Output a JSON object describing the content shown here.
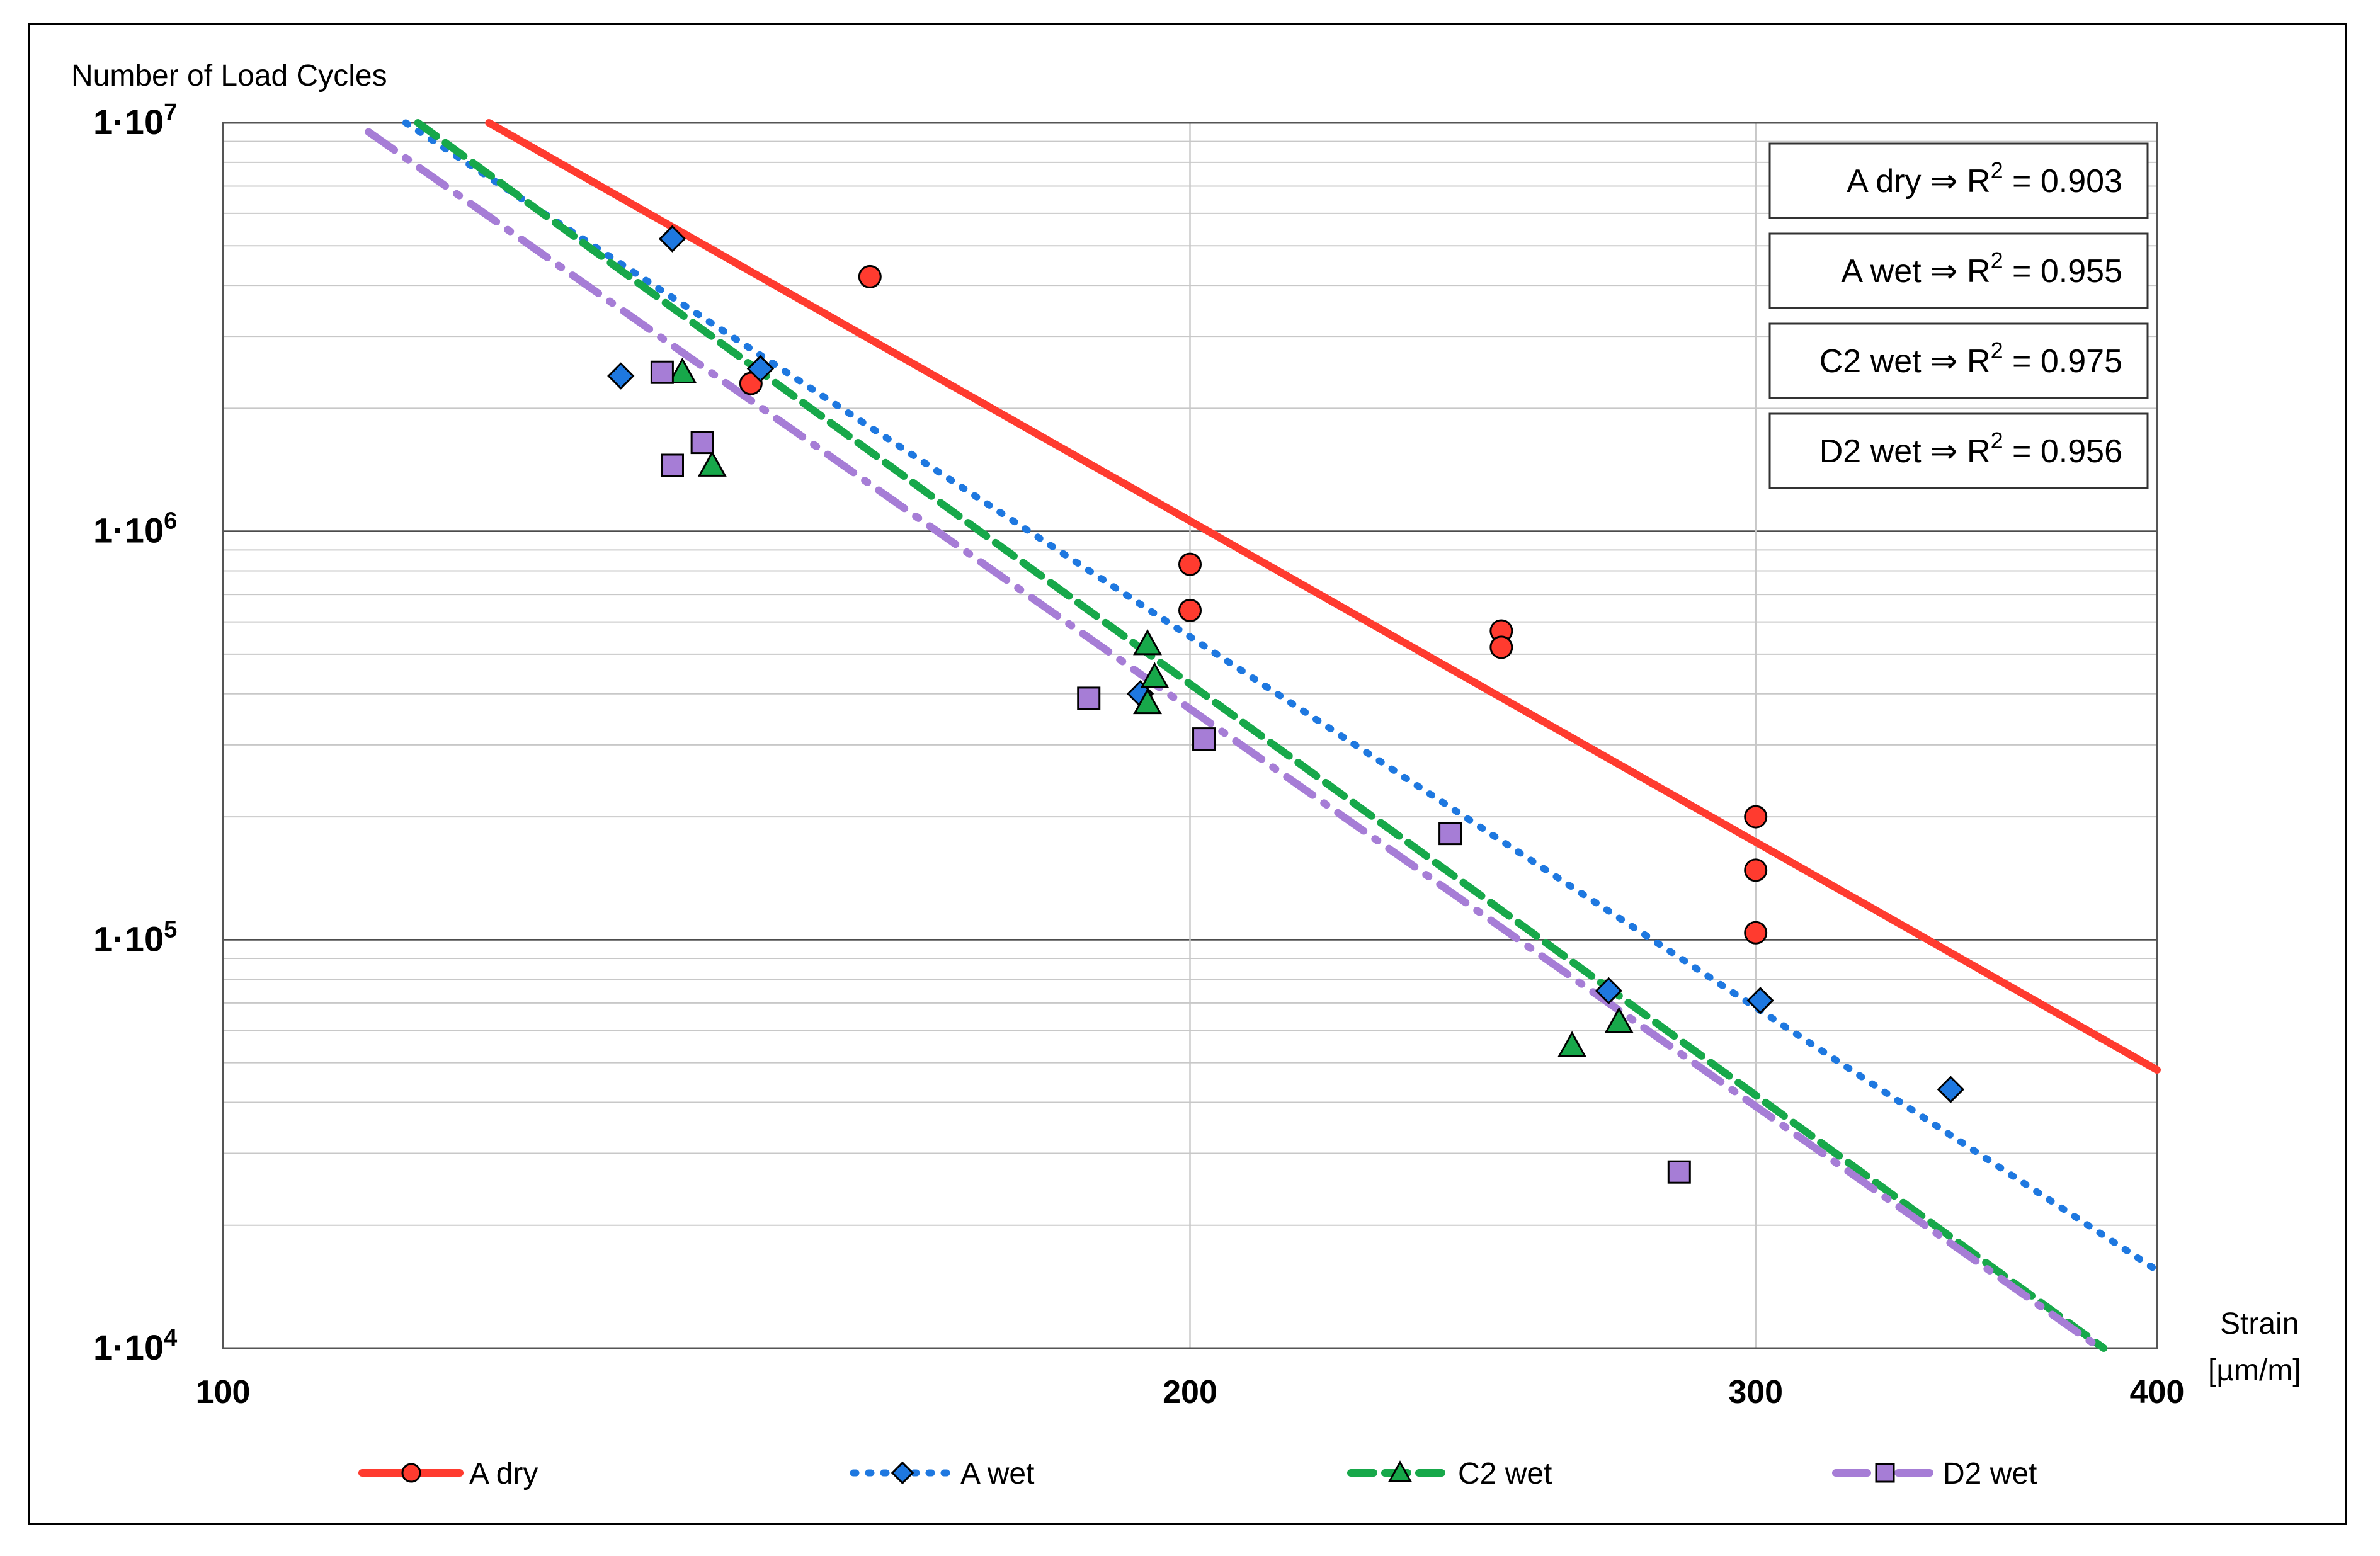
{
  "chart_data": {
    "type": "scatter",
    "xscale": "log",
    "yscale": "log",
    "xlim": [
      100,
      400
    ],
    "ylim": [
      10000,
      10000000
    ],
    "xticks": [
      100,
      200,
      300,
      400
    ],
    "yticks": [
      10000,
      100000,
      1000000,
      10000000
    ],
    "xtick_labels": [
      "100",
      "200",
      "300",
      "400"
    ],
    "ytick_labels": [
      {
        "base": "1·10",
        "exp": "4"
      },
      {
        "base": "1·10",
        "exp": "5"
      },
      {
        "base": "1·10",
        "exp": "6"
      },
      {
        "base": "1·10",
        "exp": "7"
      }
    ],
    "ylabel": "Number of Load Cycles",
    "xlabel_line1": "Strain",
    "xlabel_line2": "[µm/m]",
    "grid": "major vertical, major and minor horizontal",
    "legend_position": "bottom",
    "r2_boxes": [
      {
        "label": "A dry ⇒ R",
        "sup": "2",
        "value": " = 0.903"
      },
      {
        "label": "A wet ⇒ R",
        "sup": "2",
        "value": " = 0.955"
      },
      {
        "label": "C2 wet ⇒ R",
        "sup": "2",
        "value": " = 0.975"
      },
      {
        "label": "D2 wet ⇒ R",
        "sup": "2",
        "value": " = 0.956"
      }
    ],
    "series": [
      {
        "name": "A dry",
        "color": "#ff3b2f",
        "marker": "circle",
        "line": "solid",
        "trend": [
          [
            121,
            10000000
          ],
          [
            400,
            48000
          ]
        ],
        "points": [
          [
            159,
            4200000
          ],
          [
            146,
            2300000
          ],
          [
            200,
            830000
          ],
          [
            200,
            640000
          ],
          [
            250,
            570000
          ],
          [
            250,
            520000
          ],
          [
            300,
            200000
          ],
          [
            300,
            148000
          ],
          [
            300,
            104000
          ]
        ]
      },
      {
        "name": "A wet",
        "color": "#1e78e0",
        "marker": "diamond",
        "line": "dotted",
        "trend": [
          [
            114,
            10000000
          ],
          [
            400,
            15500
          ]
        ],
        "points": [
          [
            138,
            5200000
          ],
          [
            133,
            2400000
          ],
          [
            147,
            2500000
          ],
          [
            193,
            400000
          ],
          [
            301,
            71000
          ],
          [
            270,
            75000
          ],
          [
            345,
            43000
          ]
        ]
      },
      {
        "name": "C2 wet",
        "color": "#17a84a",
        "marker": "triangle",
        "line": "dashed",
        "trend": [
          [
            115,
            10000000
          ],
          [
            385,
            10000
          ]
        ],
        "points": [
          [
            139,
            2450000
          ],
          [
            142,
            1450000
          ],
          [
            194,
            530000
          ],
          [
            195,
            440000
          ],
          [
            194,
            380000
          ],
          [
            263,
            55000
          ],
          [
            272,
            63000
          ]
        ]
      },
      {
        "name": "D2 wet",
        "color": "#a67dd6",
        "marker": "square",
        "line": "dashdot",
        "trend": [
          [
            111,
            9500000
          ],
          [
            384,
            10000
          ]
        ],
        "points": [
          [
            137,
            2450000
          ],
          [
            138,
            1450000
          ],
          [
            141,
            1650000
          ],
          [
            186,
            390000
          ],
          [
            202,
            310000
          ],
          [
            241,
            182000
          ],
          [
            284,
            27000
          ]
        ]
      }
    ]
  }
}
